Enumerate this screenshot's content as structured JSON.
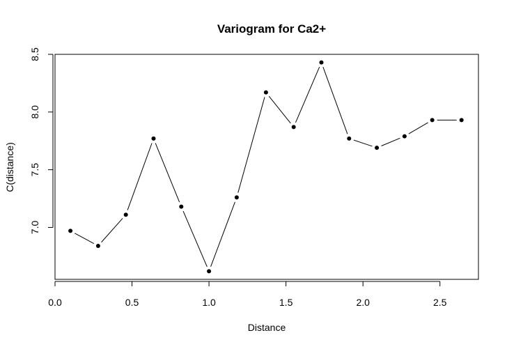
{
  "chart_data": {
    "type": "line",
    "title": "Variogram for Ca2+",
    "xlabel": "Distance",
    "ylabel": "C(distance)",
    "xlim": [
      0.0,
      2.75
    ],
    "ylim": [
      6.55,
      8.5
    ],
    "x_ticks": [
      0.0,
      0.5,
      1.0,
      1.5,
      2.0,
      2.5
    ],
    "x_tick_labels": [
      "0.0",
      "0.5",
      "1.0",
      "1.5",
      "2.0",
      "2.5"
    ],
    "y_ticks": [
      7.0,
      7.5,
      8.0,
      8.5
    ],
    "y_tick_labels": [
      "7.0",
      "7.5",
      "8.0",
      "8.5"
    ],
    "grid": false,
    "legend": "none",
    "line_color": "#000000",
    "marker_color": "#000000",
    "series": [
      {
        "x": [
          0.1,
          0.28,
          0.46,
          0.64,
          0.82,
          1.0,
          1.18,
          1.37,
          1.55,
          1.73,
          1.91,
          2.09,
          2.27,
          2.45,
          2.64
        ],
        "y": [
          6.97,
          6.84,
          7.11,
          7.77,
          7.18,
          6.62,
          7.26,
          8.17,
          7.87,
          8.43,
          7.77,
          7.69,
          7.79,
          7.93,
          7.93
        ]
      }
    ]
  }
}
